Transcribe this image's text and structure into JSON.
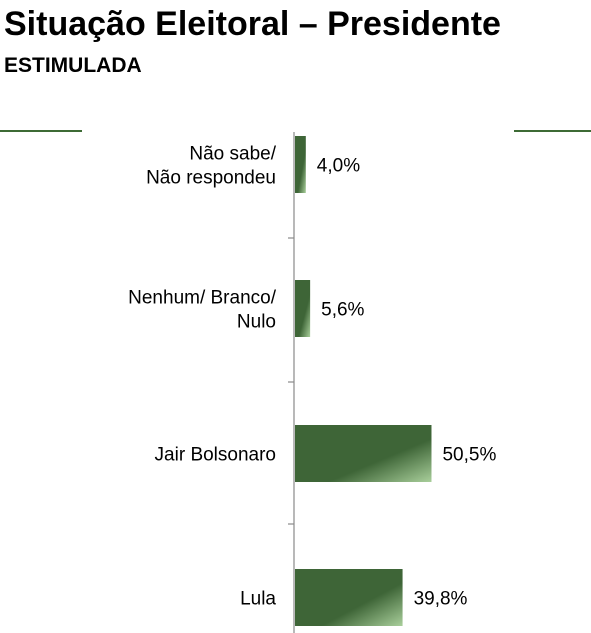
{
  "header": {
    "title": "Situação Eleitoral – Presidente",
    "subtitle": "ESTIMULADA"
  },
  "colors": {
    "bar_dark": "#3e6537",
    "bar_light": "#a9cf9b",
    "rule": "#3d6b35",
    "axis": "#8a8a8a"
  },
  "chart_data": {
    "type": "bar",
    "orientation": "horizontal",
    "title": "",
    "xlabel": "",
    "ylabel": "",
    "categories": [
      [
        "Não sabe/",
        "Não respondeu"
      ],
      [
        "Nenhum/ Branco/",
        "Nulo"
      ],
      [
        "Jair Bolsonaro"
      ],
      [
        "Lula"
      ]
    ],
    "values": [
      4.0,
      5.6,
      50.5,
      39.8
    ],
    "value_labels": [
      "4,0%",
      "5,6%",
      "50,5%",
      "39,8%"
    ],
    "xlim": [
      0,
      74
    ],
    "grid": false,
    "legend": "none"
  }
}
